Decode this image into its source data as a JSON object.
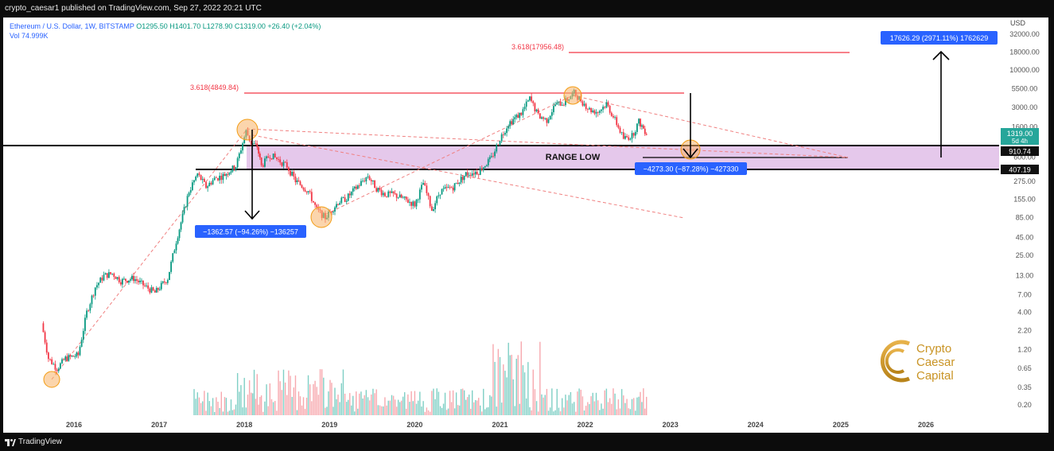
{
  "header": {
    "published_text": "crypto_caesar1 published on TradingView.com, Sep 27, 2022 20:21 UTC"
  },
  "legend": {
    "symbol_line": "Ethereum / U.S. Dollar, 1W, BITSTAMP",
    "ohlc_line": "O1295.50  H1401.70  L1278.90  C1319.00  +26.40 (+2.04%)",
    "volume_line": "Vol  74.999K"
  },
  "footer": {
    "brand": "TradingView"
  },
  "chart_data": {
    "type": "line",
    "title": "Ethereum / U.S. Dollar, 1W, BITSTAMP",
    "price_currency": "USD",
    "price_scale": "log",
    "y_ticks": [
      "32000.00",
      "18000.00",
      "10000.00",
      "5500.00",
      "3000.00",
      "1600.00",
      "600.00",
      "275.00",
      "155.00",
      "85.00",
      "45.00",
      "25.00",
      "13.00",
      "7.00",
      "4.00",
      "2.20",
      "1.20",
      "0.65",
      "0.35",
      "0.20"
    ],
    "x_ticks": [
      "2016",
      "2017",
      "2018",
      "2019",
      "2020",
      "2021",
      "2022",
      "2023",
      "2024",
      "2025",
      "2026"
    ],
    "price_path": [
      {
        "x": "2015.62",
        "y": 2.8
      },
      {
        "x": "2015.70",
        "y": 0.9
      },
      {
        "x": "2015.80",
        "y": 0.65
      },
      {
        "x": "2015.90",
        "y": 0.9
      },
      {
        "x": "2016.05",
        "y": 1.0
      },
      {
        "x": "2016.15",
        "y": 4.0
      },
      {
        "x": "2016.25",
        "y": 9
      },
      {
        "x": "2016.35",
        "y": 13
      },
      {
        "x": "2016.45",
        "y": 14
      },
      {
        "x": "2016.55",
        "y": 11
      },
      {
        "x": "2016.70",
        "y": 12
      },
      {
        "x": "2016.85",
        "y": 9
      },
      {
        "x": "2016.95",
        "y": 7.5
      },
      {
        "x": "2017.10",
        "y": 12
      },
      {
        "x": "2017.20",
        "y": 40
      },
      {
        "x": "2017.35",
        "y": 200
      },
      {
        "x": "2017.45",
        "y": 350
      },
      {
        "x": "2017.55",
        "y": 230
      },
      {
        "x": "2017.65",
        "y": 300
      },
      {
        "x": "2017.75",
        "y": 330
      },
      {
        "x": "2017.90",
        "y": 450
      },
      {
        "x": "2018.02",
        "y": 1390
      },
      {
        "x": "2018.08",
        "y": 950
      },
      {
        "x": "2018.15",
        "y": 850
      },
      {
        "x": "2018.20",
        "y": 450
      },
      {
        "x": "2018.30",
        "y": 650
      },
      {
        "x": "2018.40",
        "y": 550
      },
      {
        "x": "2018.50",
        "y": 450
      },
      {
        "x": "2018.60",
        "y": 280
      },
      {
        "x": "2018.75",
        "y": 200
      },
      {
        "x": "2018.85",
        "y": 110
      },
      {
        "x": "2018.95",
        "y": 85
      },
      {
        "x": "2019.10",
        "y": 140
      },
      {
        "x": "2019.20",
        "y": 160
      },
      {
        "x": "2019.35",
        "y": 250
      },
      {
        "x": "2019.45",
        "y": 330
      },
      {
        "x": "2019.55",
        "y": 220
      },
      {
        "x": "2019.65",
        "y": 180
      },
      {
        "x": "2019.75",
        "y": 180
      },
      {
        "x": "2019.90",
        "y": 150
      },
      {
        "x": "2020.00",
        "y": 130
      },
      {
        "x": "2020.10",
        "y": 260
      },
      {
        "x": "2020.20",
        "y": 110
      },
      {
        "x": "2020.30",
        "y": 200
      },
      {
        "x": "2020.45",
        "y": 230
      },
      {
        "x": "2020.60",
        "y": 350
      },
      {
        "x": "2020.75",
        "y": 380
      },
      {
        "x": "2020.90",
        "y": 580
      },
      {
        "x": "2021.00",
        "y": 1100
      },
      {
        "x": "2021.10",
        "y": 1800
      },
      {
        "x": "2021.25",
        "y": 2500
      },
      {
        "x": "2021.35",
        "y": 4000
      },
      {
        "x": "2021.45",
        "y": 2300
      },
      {
        "x": "2021.55",
        "y": 2000
      },
      {
        "x": "2021.65",
        "y": 3300
      },
      {
        "x": "2021.75",
        "y": 3500
      },
      {
        "x": "2021.87",
        "y": 4800
      },
      {
        "x": "2021.95",
        "y": 3800
      },
      {
        "x": "2022.05",
        "y": 2800
      },
      {
        "x": "2022.15",
        "y": 2600
      },
      {
        "x": "2022.25",
        "y": 3400
      },
      {
        "x": "2022.35",
        "y": 2000
      },
      {
        "x": "2022.45",
        "y": 1100
      },
      {
        "x": "2022.55",
        "y": 1200
      },
      {
        "x": "2022.63",
        "y": 1900
      },
      {
        "x": "2022.72",
        "y": 1319
      }
    ],
    "annotations": {
      "fib_upper": "3.618(17956.48)",
      "fib_lower": "3.618(4849.84)",
      "range_label": "RANGE LOW",
      "measure_2018": "−1362.57 (−94.26%) −136257",
      "measure_2022": "−4273.30 (−87.28%) −427330",
      "measure_target": "17626.29 (2971.11%) 1762629",
      "current_price": "1319.00",
      "countdown": "5d 4h",
      "range_top_value": "910.74",
      "range_bottom_value": "407.19"
    },
    "colors": {
      "up": "#089981",
      "down": "#f23645",
      "range_fill": "#e1bee7",
      "label_blue": "#2962ff",
      "circle": "#f7b267"
    },
    "logo_text": [
      "Crypto",
      "Caesar",
      "Capital"
    ]
  }
}
